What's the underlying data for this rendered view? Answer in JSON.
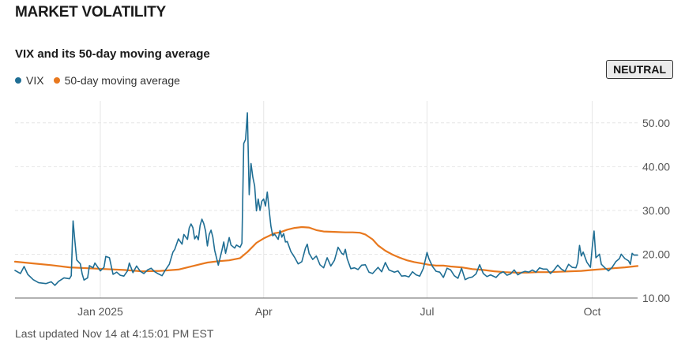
{
  "page": {
    "title": "MARKET VOLATILITY",
    "footer": "Last updated Nov 14 at 4:15:01 PM EST"
  },
  "badge": {
    "label": "NEUTRAL"
  },
  "colors": {
    "vix": "#1f6e94",
    "ma": "#e8781e",
    "grid": "#e6e6e6",
    "axis": "#666666"
  },
  "chart_data": {
    "type": "line",
    "title": "VIX and its 50-day moving average",
    "xlabel": "",
    "ylabel": "",
    "ylim": [
      10,
      55
    ],
    "yticks": [
      10,
      20,
      30,
      40,
      50
    ],
    "ytick_labels": [
      "10.00",
      "20.00",
      "30.00",
      "40.00",
      "50.00"
    ],
    "xlim": [
      0,
      343
    ],
    "xticks": [
      47,
      137,
      227,
      318
    ],
    "xtick_labels": [
      "Jan 2025",
      "Apr",
      "Jul",
      "Oct"
    ],
    "legend": [
      "VIX",
      "50-day moving average"
    ],
    "series": [
      {
        "name": "VIX",
        "points": [
          [
            0,
            16.3
          ],
          [
            3,
            15.6
          ],
          [
            5,
            17.2
          ],
          [
            7,
            15.4
          ],
          [
            10,
            14.2
          ],
          [
            13,
            13.5
          ],
          [
            17,
            13.3
          ],
          [
            20,
            13.7
          ],
          [
            22,
            12.9
          ],
          [
            24,
            13.8
          ],
          [
            27,
            14.6
          ],
          [
            30,
            14.4
          ],
          [
            31,
            15.1
          ],
          [
            32,
            27.6
          ],
          [
            33,
            23.0
          ],
          [
            34,
            18.7
          ],
          [
            36,
            17.8
          ],
          [
            37,
            15.5
          ],
          [
            38,
            14.1
          ],
          [
            40,
            14.6
          ],
          [
            41,
            17.4
          ],
          [
            43,
            16.9
          ],
          [
            44,
            18.0
          ],
          [
            47,
            16.2
          ],
          [
            49,
            17.0
          ],
          [
            50,
            19.5
          ],
          [
            52,
            19.2
          ],
          [
            54,
            15.4
          ],
          [
            56,
            15.9
          ],
          [
            58,
            15.2
          ],
          [
            60,
            15.0
          ],
          [
            62,
            16.2
          ],
          [
            63,
            18.0
          ],
          [
            65,
            15.8
          ],
          [
            67,
            17.3
          ],
          [
            69,
            16.1
          ],
          [
            71,
            15.6
          ],
          [
            73,
            16.4
          ],
          [
            75,
            16.8
          ],
          [
            77,
            16.0
          ],
          [
            79,
            15.5
          ],
          [
            81,
            15.1
          ],
          [
            83,
            16.5
          ],
          [
            85,
            17.7
          ],
          [
            87,
            20.5
          ],
          [
            88,
            21.1
          ],
          [
            90,
            23.5
          ],
          [
            92,
            22.3
          ],
          [
            93,
            24.5
          ],
          [
            95,
            23.4
          ],
          [
            96,
            26.0
          ],
          [
            97,
            26.9
          ],
          [
            98,
            26.1
          ],
          [
            99,
            23.5
          ],
          [
            100,
            24.2
          ],
          [
            101,
            23.3
          ],
          [
            102,
            26.6
          ],
          [
            103,
            28.0
          ],
          [
            104,
            27.0
          ],
          [
            105,
            25.3
          ],
          [
            106,
            21.9
          ],
          [
            107,
            24.5
          ],
          [
            108,
            25.5
          ],
          [
            109,
            23.9
          ],
          [
            110,
            20.9
          ],
          [
            112,
            17.5
          ],
          [
            114,
            20.9
          ],
          [
            115,
            22.8
          ],
          [
            116,
            20.2
          ],
          [
            117,
            22.0
          ],
          [
            118,
            23.8
          ],
          [
            119,
            22.1
          ],
          [
            121,
            21.4
          ],
          [
            122,
            22.1
          ],
          [
            124,
            21.6
          ],
          [
            125,
            22.5
          ],
          [
            126,
            45.3
          ],
          [
            127,
            46.2
          ],
          [
            128,
            52.3
          ],
          [
            129,
            33.6
          ],
          [
            130,
            40.7
          ],
          [
            131,
            37.6
          ],
          [
            132,
            35.6
          ],
          [
            133,
            29.9
          ],
          [
            134,
            32.6
          ],
          [
            135,
            30.0
          ],
          [
            136,
            32.1
          ],
          [
            137,
            32.6
          ],
          [
            138,
            31.0
          ],
          [
            139,
            34.2
          ],
          [
            140,
            30.2
          ],
          [
            141,
            26.4
          ],
          [
            142,
            24.2
          ],
          [
            143,
            24.6
          ],
          [
            145,
            23.4
          ],
          [
            146,
            25.4
          ],
          [
            147,
            23.9
          ],
          [
            148,
            24.7
          ],
          [
            149,
            22.8
          ],
          [
            150,
            22.9
          ],
          [
            152,
            20.6
          ],
          [
            154,
            19.3
          ],
          [
            156,
            17.8
          ],
          [
            158,
            18.3
          ],
          [
            160,
            21.4
          ],
          [
            161,
            22.3
          ],
          [
            162,
            20.2
          ],
          [
            164,
            18.8
          ],
          [
            166,
            19.6
          ],
          [
            168,
            17.6
          ],
          [
            170,
            16.9
          ],
          [
            172,
            19.2
          ],
          [
            174,
            17.3
          ],
          [
            176,
            18.6
          ],
          [
            178,
            21.6
          ],
          [
            180,
            20.2
          ],
          [
            181,
            19.9
          ],
          [
            182,
            21.1
          ],
          [
            183,
            19.0
          ],
          [
            185,
            16.7
          ],
          [
            187,
            16.9
          ],
          [
            189,
            16.5
          ],
          [
            191,
            17.5
          ],
          [
            193,
            17.6
          ],
          [
            195,
            15.9
          ],
          [
            197,
            15.6
          ],
          [
            200,
            17.0
          ],
          [
            202,
            16.0
          ],
          [
            204,
            18.1
          ],
          [
            206,
            16.4
          ],
          [
            209,
            15.9
          ],
          [
            211,
            16.2
          ],
          [
            213,
            15.0
          ],
          [
            215,
            15.1
          ],
          [
            217,
            14.8
          ],
          [
            219,
            16.0
          ],
          [
            221,
            15.3
          ],
          [
            223,
            15.0
          ],
          [
            225,
            16.8
          ],
          [
            227,
            20.4
          ],
          [
            228,
            19.0
          ],
          [
            230,
            17.2
          ],
          [
            232,
            16.1
          ],
          [
            234,
            15.9
          ],
          [
            236,
            14.7
          ],
          [
            238,
            16.8
          ],
          [
            240,
            16.4
          ],
          [
            242,
            15.1
          ],
          [
            244,
            14.5
          ],
          [
            246,
            16.8
          ],
          [
            248,
            14.2
          ],
          [
            250,
            14.6
          ],
          [
            252,
            14.8
          ],
          [
            254,
            15.5
          ],
          [
            256,
            17.6
          ],
          [
            258,
            15.6
          ],
          [
            260,
            14.9
          ],
          [
            262,
            15.3
          ],
          [
            265,
            14.7
          ],
          [
            267,
            15.6
          ],
          [
            269,
            16.0
          ],
          [
            271,
            15.2
          ],
          [
            273,
            15.5
          ],
          [
            275,
            16.4
          ],
          [
            277,
            15.3
          ],
          [
            279,
            15.8
          ],
          [
            281,
            16.1
          ],
          [
            283,
            15.9
          ],
          [
            285,
            16.4
          ],
          [
            287,
            15.9
          ],
          [
            289,
            16.9
          ],
          [
            291,
            16.6
          ],
          [
            293,
            16.6
          ],
          [
            295,
            15.6
          ],
          [
            297,
            16.4
          ],
          [
            299,
            17.5
          ],
          [
            301,
            16.6
          ],
          [
            303,
            16.1
          ],
          [
            305,
            17.7
          ],
          [
            307,
            17.0
          ],
          [
            309,
            16.9
          ],
          [
            310,
            18.1
          ],
          [
            311,
            22.0
          ],
          [
            312,
            19.6
          ],
          [
            313,
            20.5
          ],
          [
            315,
            18.2
          ],
          [
            317,
            17.0
          ],
          [
            318,
            21.6
          ],
          [
            319,
            25.3
          ],
          [
            320,
            19.2
          ],
          [
            322,
            20.0
          ],
          [
            323,
            17.7
          ],
          [
            325,
            16.9
          ],
          [
            327,
            16.2
          ],
          [
            329,
            17.0
          ],
          [
            331,
            18.3
          ],
          [
            333,
            19.0
          ],
          [
            334,
            20.0
          ],
          [
            336,
            19.0
          ],
          [
            338,
            18.5
          ],
          [
            339,
            17.7
          ],
          [
            340,
            20.2
          ],
          [
            341,
            19.8
          ],
          [
            343,
            19.8
          ]
        ]
      },
      {
        "name": "50-day moving average",
        "points": [
          [
            0,
            18.3
          ],
          [
            10,
            17.9
          ],
          [
            20,
            17.5
          ],
          [
            30,
            17.0
          ],
          [
            40,
            16.8
          ],
          [
            50,
            16.6
          ],
          [
            60,
            16.4
          ],
          [
            70,
            16.1
          ],
          [
            80,
            16.2
          ],
          [
            90,
            16.5
          ],
          [
            100,
            17.5
          ],
          [
            106,
            18.1
          ],
          [
            112,
            18.4
          ],
          [
            118,
            18.6
          ],
          [
            124,
            19.1
          ],
          [
            128,
            20.5
          ],
          [
            133,
            22.6
          ],
          [
            137,
            23.6
          ],
          [
            140,
            24.2
          ],
          [
            143,
            24.8
          ],
          [
            146,
            25.0
          ],
          [
            150,
            25.6
          ],
          [
            154,
            26.0
          ],
          [
            158,
            26.2
          ],
          [
            162,
            26.1
          ],
          [
            166,
            25.5
          ],
          [
            170,
            25.2
          ],
          [
            176,
            25.1
          ],
          [
            182,
            25.0
          ],
          [
            186,
            25.0
          ],
          [
            190,
            24.9
          ],
          [
            193,
            24.5
          ],
          [
            197,
            23.4
          ],
          [
            200,
            22.0
          ],
          [
            204,
            20.8
          ],
          [
            208,
            19.9
          ],
          [
            212,
            19.2
          ],
          [
            216,
            18.6
          ],
          [
            220,
            18.2
          ],
          [
            224,
            17.9
          ],
          [
            228,
            17.6
          ],
          [
            232,
            17.4
          ],
          [
            236,
            17.4
          ],
          [
            240,
            17.2
          ],
          [
            246,
            17.0
          ],
          [
            252,
            16.6
          ],
          [
            258,
            16.4
          ],
          [
            264,
            16.1
          ],
          [
            270,
            15.9
          ],
          [
            276,
            15.8
          ],
          [
            282,
            15.8
          ],
          [
            288,
            15.9
          ],
          [
            294,
            15.9
          ],
          [
            300,
            16.0
          ],
          [
            306,
            16.1
          ],
          [
            312,
            16.2
          ],
          [
            318,
            16.4
          ],
          [
            324,
            16.6
          ],
          [
            330,
            16.8
          ],
          [
            336,
            17.0
          ],
          [
            343,
            17.3
          ]
        ]
      }
    ]
  }
}
